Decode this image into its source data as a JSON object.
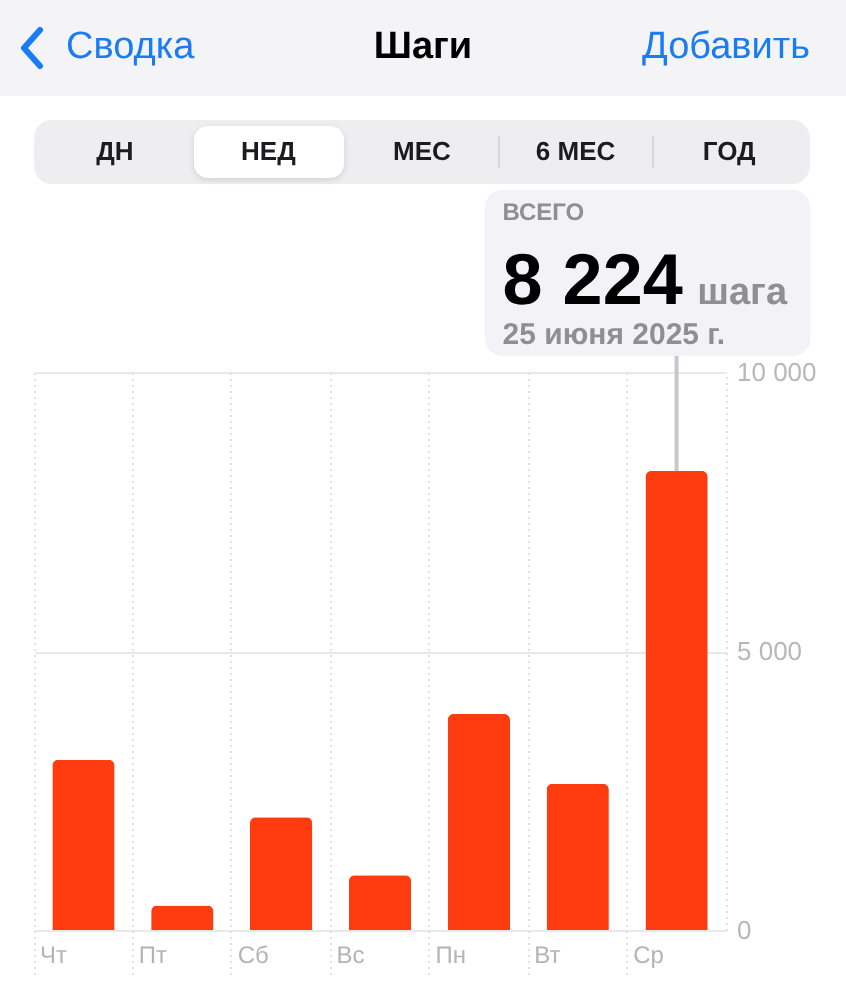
{
  "chart_data": {
    "type": "bar",
    "title": "Шаги",
    "categories": [
      "Чт",
      "Пт",
      "Сб",
      "Вс",
      "Пн",
      "Вт",
      "Ср"
    ],
    "values": [
      3050,
      440,
      2020,
      980,
      3870,
      2620,
      8224
    ],
    "color": "#ff3b10",
    "ylim": [
      0,
      10000
    ],
    "yticks": [
      0,
      {
        "value": 5000,
        "label": "5 000"
      },
      {
        "value": 10000,
        "label": "10 000"
      }
    ],
    "grid": true,
    "annotations": [
      "Сводка",
      "Добавить",
      "ДН",
      "НЕД",
      "МЕС",
      "6 МЕС",
      "ГОД",
      {
        "text": "ВСЕГО\n8 224 шага\n25 июня 2025 г.",
        "x": "Ср",
        "y": 8224
      }
    ]
  }
}
